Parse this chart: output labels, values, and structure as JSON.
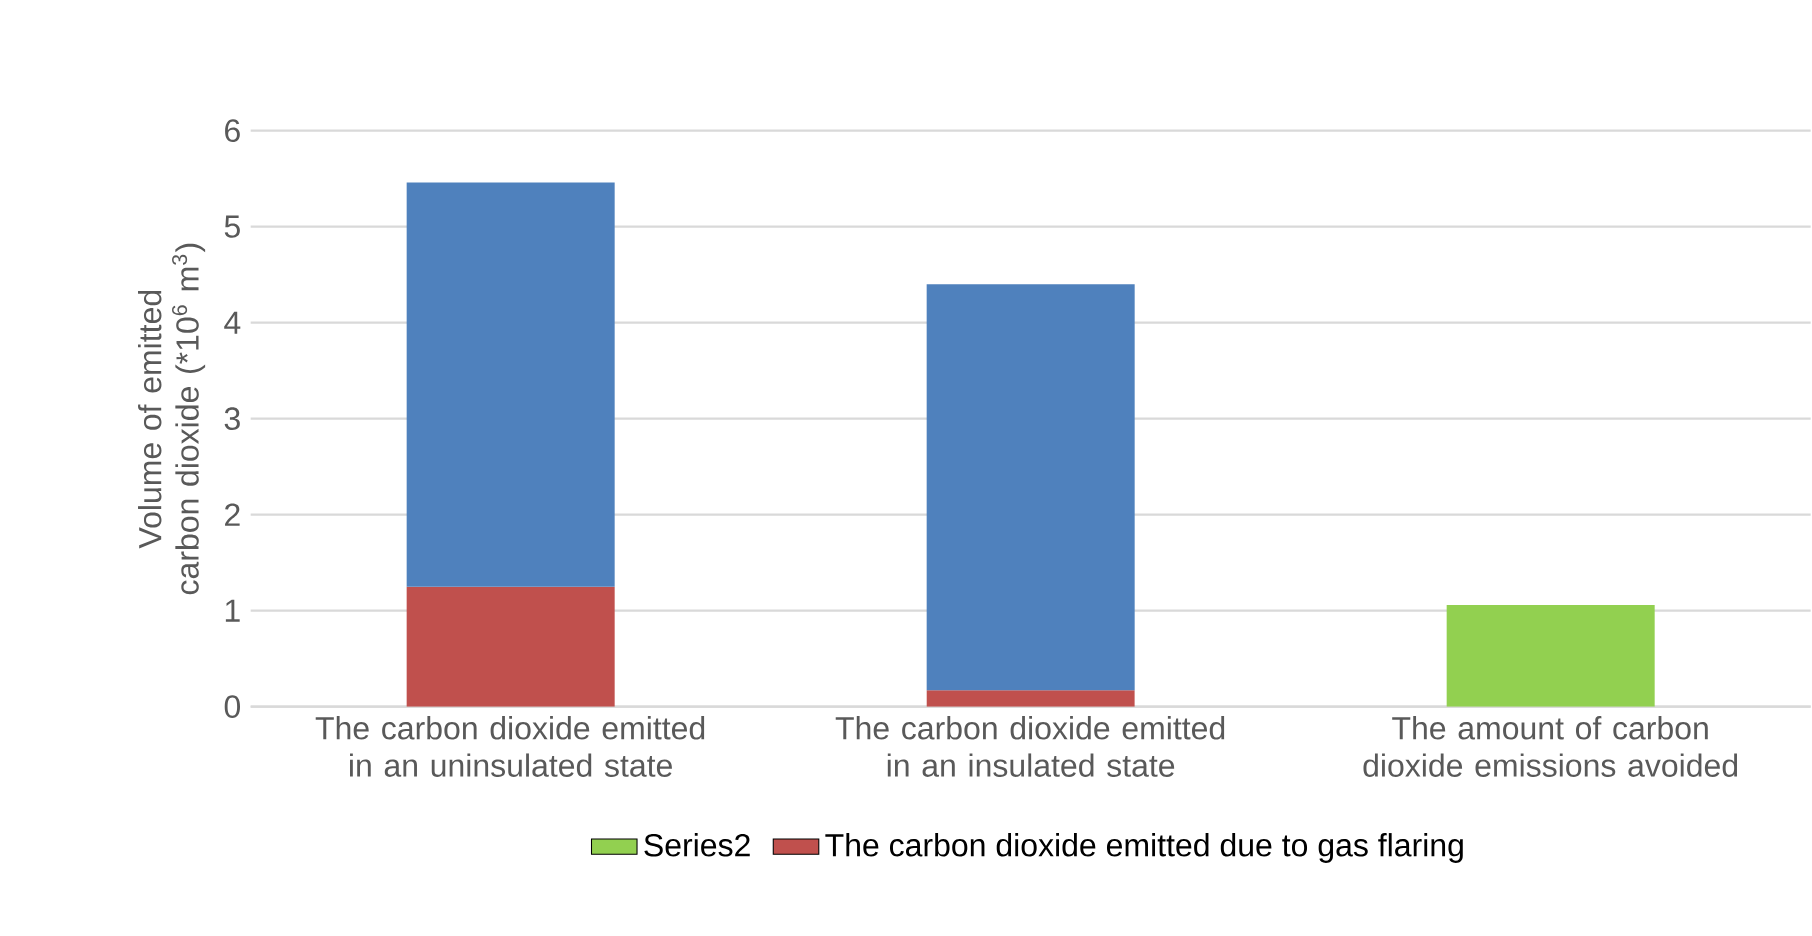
{
  "chart_data": {
    "type": "bar",
    "stacked": true,
    "ylabel": "Volume of emitted carbon dioxide (*10$^{6}$ m$^{3}$)",
    "categories": [
      "The carbon dioxide emitted in an uninsulated state",
      "The carbon dioxide emitted in an insulated state",
      "The amount of carbon dioxide emissions avoided"
    ],
    "series": [
      {
        "name": "Series2",
        "color": "#92d050",
        "values": [
          null,
          null,
          1.06
        ]
      },
      {
        "name": "The carbon dioxide emitted due to gas flaring",
        "color": "#c0504d",
        "values": [
          1.25,
          0.17,
          null
        ]
      },
      {
        "color": "#4f81bd",
        "values": [
          4.21,
          4.23,
          null
        ]
      }
    ],
    "ylim": [
      0,
      6
    ],
    "yticks": [
      0,
      1,
      2,
      3,
      4,
      5,
      6
    ],
    "grid": "y",
    "legend": "bottom"
  }
}
